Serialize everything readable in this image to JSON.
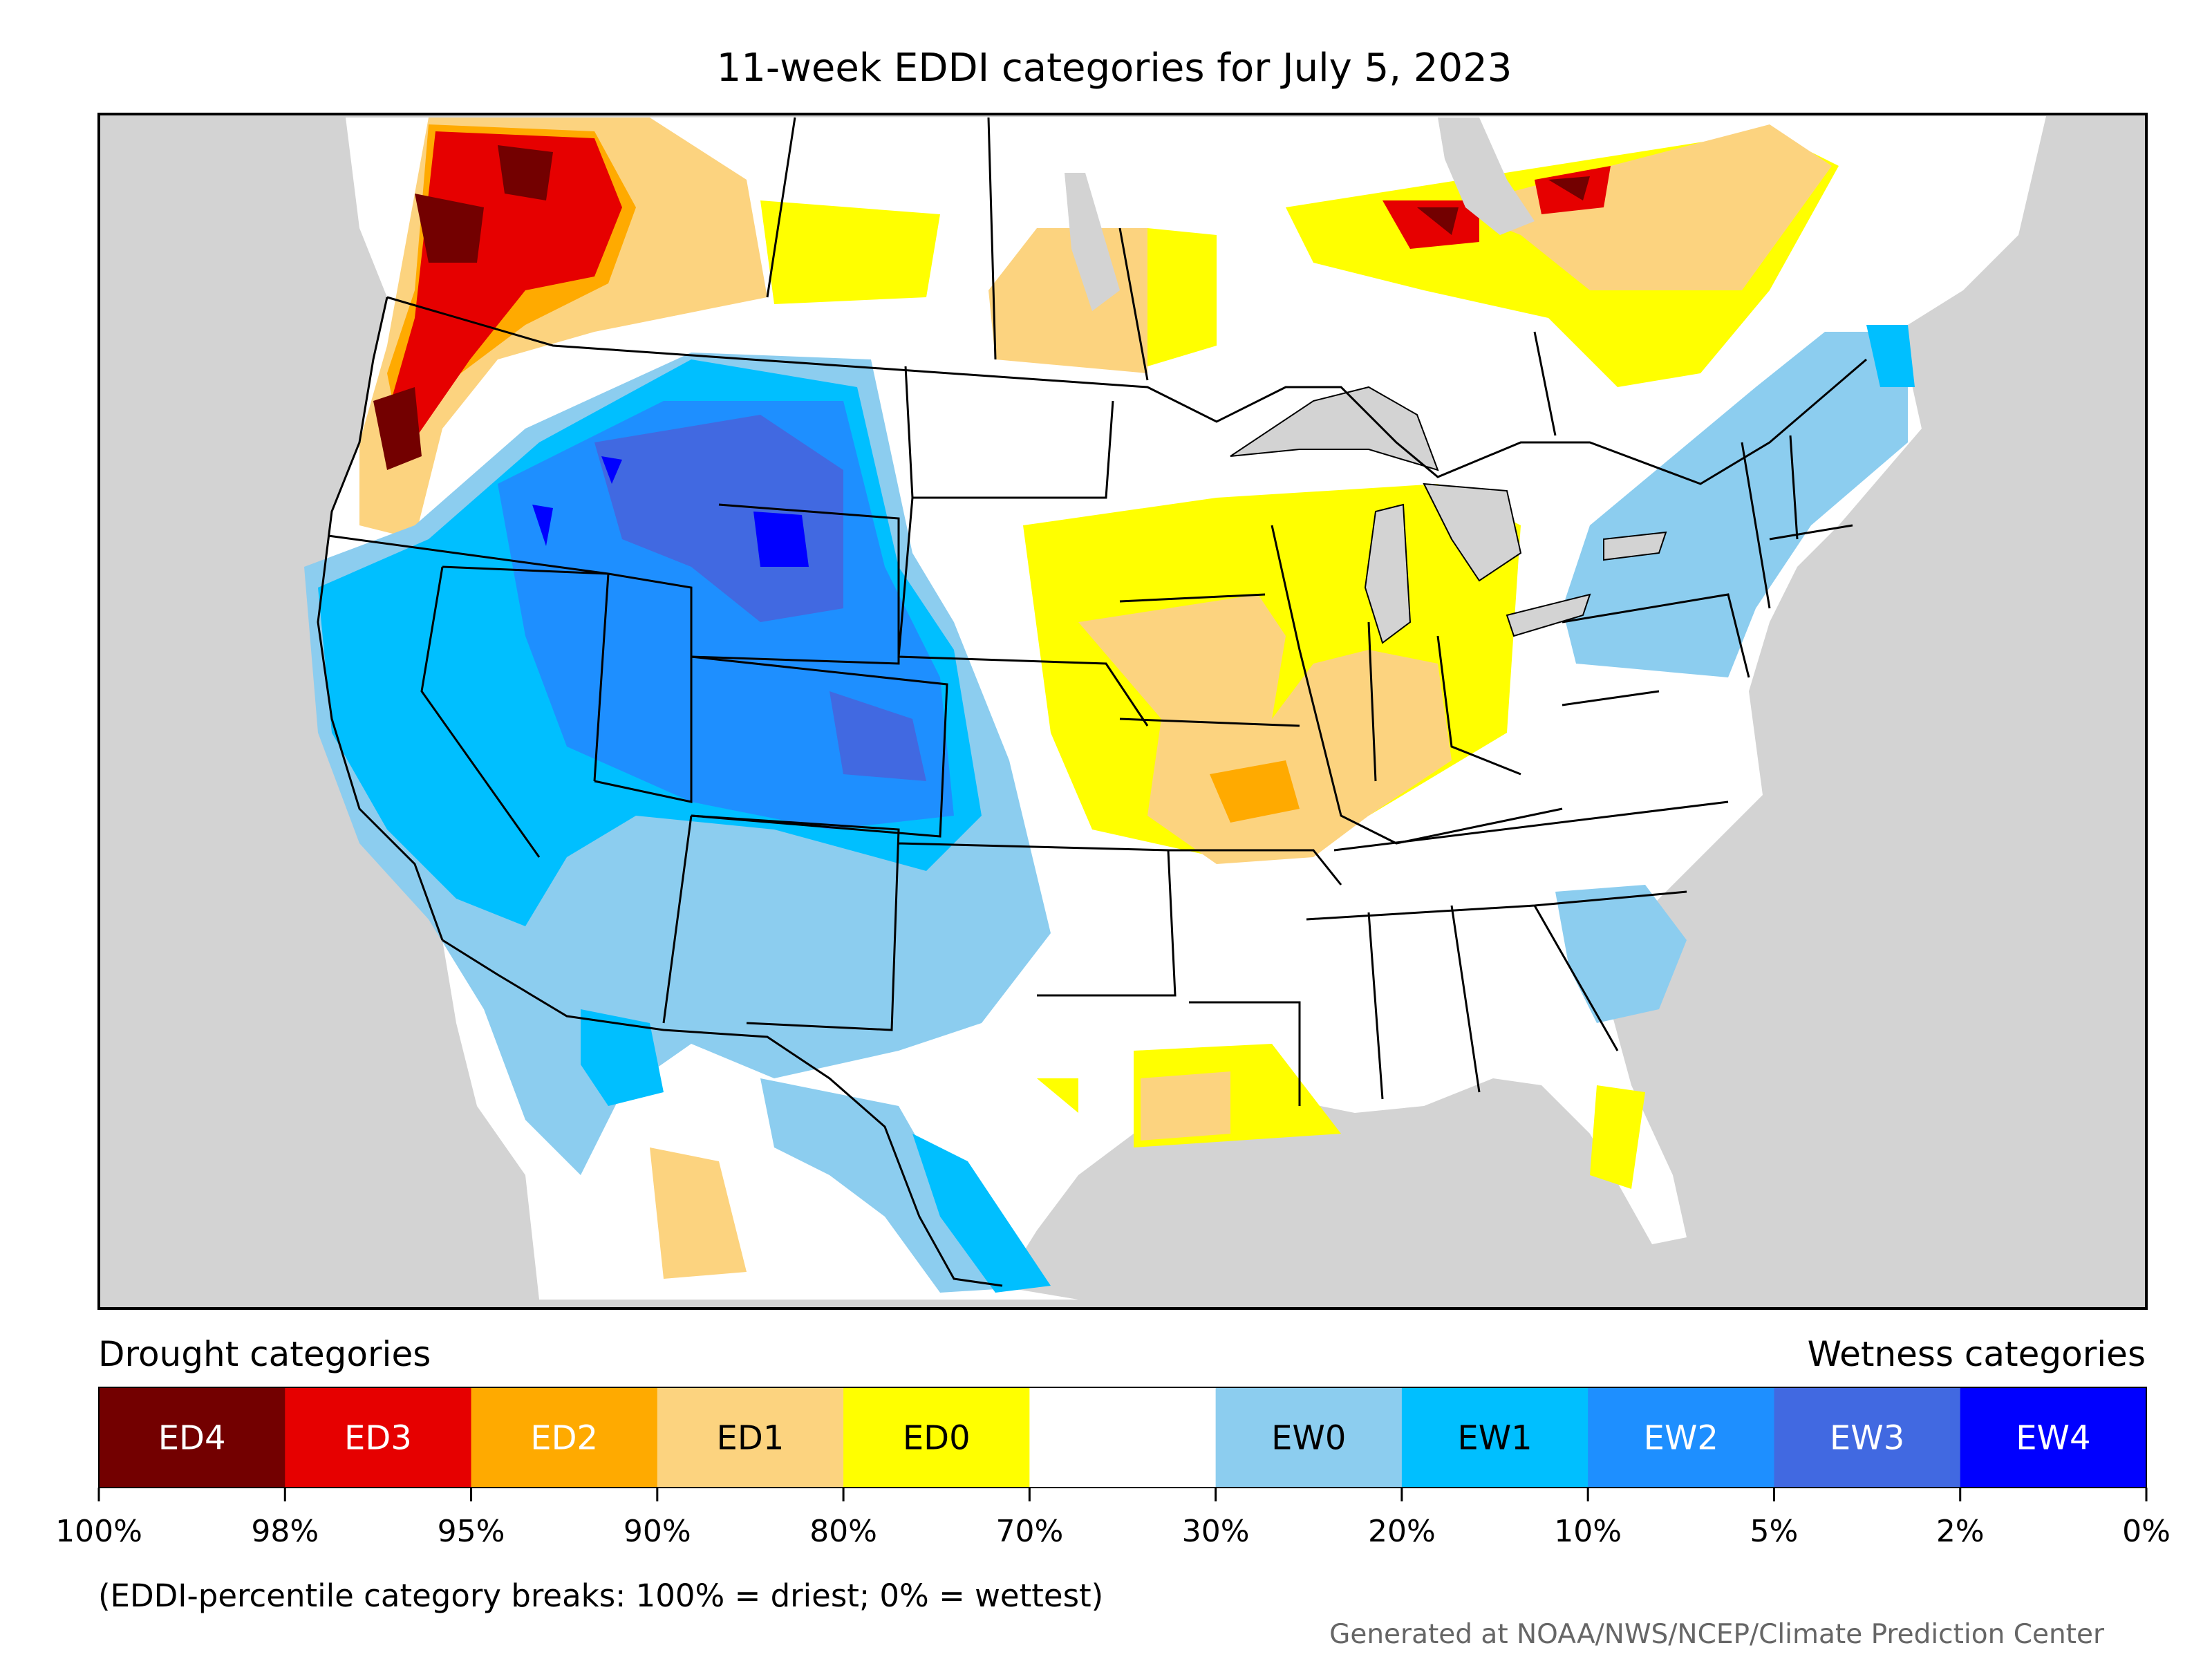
{
  "title": "11-week EDDI categories for July 5, 2023",
  "colors": {
    "background": "#d3d3d3",
    "boundary": "#000000",
    "ED4": "#730000",
    "ED3": "#e60000",
    "ED2": "#ffaa00",
    "ED1": "#fcd37f",
    "ED0": "#ffff00",
    "neutral": "#ffffff",
    "EW0": "#8ccdef",
    "EW1": "#00bfff",
    "EW2": "#1e8fff",
    "EW3": "#4169e1",
    "EW4": "#0000ff"
  },
  "legend": {
    "drought_label": "Drought categories",
    "wetness_label": "Wetness categories",
    "categories": [
      {
        "code": "ED4",
        "color": "#730000",
        "text_color": "#ffffff"
      },
      {
        "code": "ED3",
        "color": "#e60000",
        "text_color": "#ffffff"
      },
      {
        "code": "ED2",
        "color": "#ffaa00",
        "text_color": "#ffffff"
      },
      {
        "code": "ED1",
        "color": "#fcd37f",
        "text_color": "#000000"
      },
      {
        "code": "ED0",
        "color": "#ffff00",
        "text_color": "#000000"
      },
      {
        "code": "",
        "color": "#ffffff",
        "text_color": "#000000"
      },
      {
        "code": "EW0",
        "color": "#8ccdef",
        "text_color": "#000000"
      },
      {
        "code": "EW1",
        "color": "#00bfff",
        "text_color": "#000000"
      },
      {
        "code": "EW2",
        "color": "#1e8fff",
        "text_color": "#ffffff"
      },
      {
        "code": "EW3",
        "color": "#4169e1",
        "text_color": "#ffffff"
      },
      {
        "code": "EW4",
        "color": "#0000ff",
        "text_color": "#ffffff"
      }
    ],
    "breaks": [
      "100%",
      "98%",
      "95%",
      "90%",
      "80%",
      "70%",
      "30%",
      "20%",
      "10%",
      "5%",
      "2%",
      "0%"
    ]
  },
  "note": "(EDDI-percentile category breaks: 100% = driest; 0% = wettest)",
  "credit": "Generated at NOAA/NWS/NCEP/Climate Prediction Center"
}
